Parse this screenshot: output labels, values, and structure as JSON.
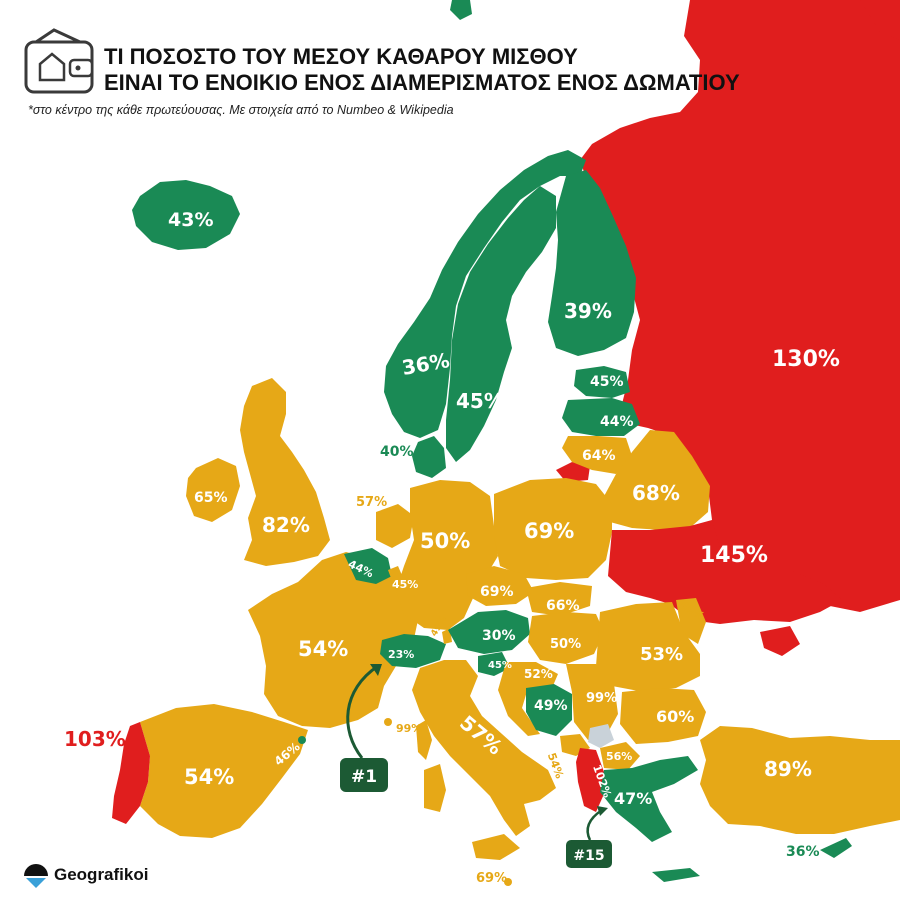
{
  "header": {
    "title_line1": "ΤΙ ΠΟΣΟΣΤΟ ΤΟΥ ΜΕΣΟΥ ΚΑΘΑΡΟΥ ΜΙΣΘΟΥ",
    "title_line2": "ΕΙΝΑΙ ΤΟ ΕΝΟΙΚΙΟ ΕΝΟΣ ΔΙΑΜΕΡΙΣΜΑΤΟΣ ΕΝΟΣ ΔΩΜΑΤΙΟΥ",
    "subtitle": "*στο κέντρο της κάθε πρωτεύουσας. Με στοιχεία από το Numbeo & Wikipedia",
    "icon": "wallet-house-icon"
  },
  "colors": {
    "green": "#1a8a55",
    "orange": "#e6a817",
    "red": "#e01e1e",
    "grey": "#c9d2d9",
    "badge": "#1c5a34"
  },
  "labels": {
    "iceland": "43%",
    "norway": "36%",
    "sweden": "45%",
    "finland": "39%",
    "russia": "130%",
    "estonia": "45%",
    "latvia": "44%",
    "lithuania": "64%",
    "belarus": "68%",
    "denmark": "40%",
    "ireland": "65%",
    "uk": "82%",
    "netherlands": "57%",
    "belgium": "44%",
    "luxembourg": "45%",
    "germany": "50%",
    "poland": "69%",
    "ukraine": "145%",
    "czechia": "69%",
    "slovakia": "66%",
    "moldova": "69%",
    "liechtenstein": "49%",
    "austria": "30%",
    "hungary": "50%",
    "romania": "53%",
    "slovenia": "45%",
    "croatia": "52%",
    "bosnia": "49%",
    "serbia": "99%",
    "bulgaria": "60%",
    "france": "54%",
    "switzerland": "23%",
    "italy": "57%",
    "monaco": "99%",
    "andorra": "46%",
    "spain": "54%",
    "portugal": "103%",
    "montenegro": "54%",
    "north_macedonia": "56%",
    "albania": "102%",
    "greece": "47%",
    "turkey": "89%",
    "cyprus": "36%",
    "malta": "69%"
  },
  "callouts": {
    "rank_best": "#1",
    "rank_greece": "#15"
  },
  "brand": {
    "name": "Geografikoi",
    "icon": "geografikoi-logo-icon"
  }
}
